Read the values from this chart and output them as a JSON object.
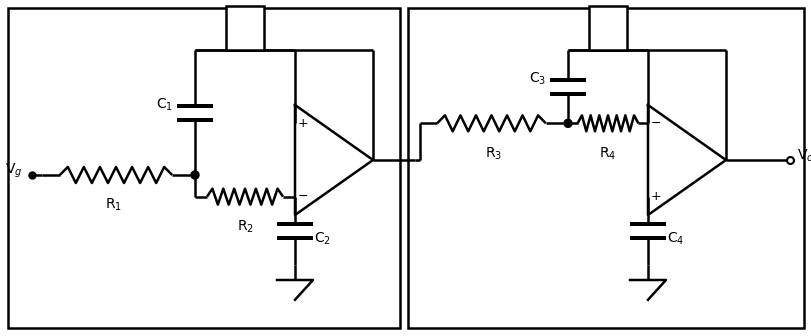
{
  "fig_width": 8.12,
  "fig_height": 3.36,
  "dpi": 100,
  "bg_color": "#ffffff",
  "line_color": "#000000",
  "lw": 1.8,
  "labels": {
    "Vg": "V$_g$",
    "R1": "R$_1$",
    "R2": "R$_2$",
    "C1": "C$_1$",
    "C2": "C$_2$",
    "R3": "R$_3$",
    "R4": "R$_4$",
    "C3": "C$_3$",
    "C4": "C$_4$",
    "Vo": "V$_o$"
  },
  "fontsize": 10
}
